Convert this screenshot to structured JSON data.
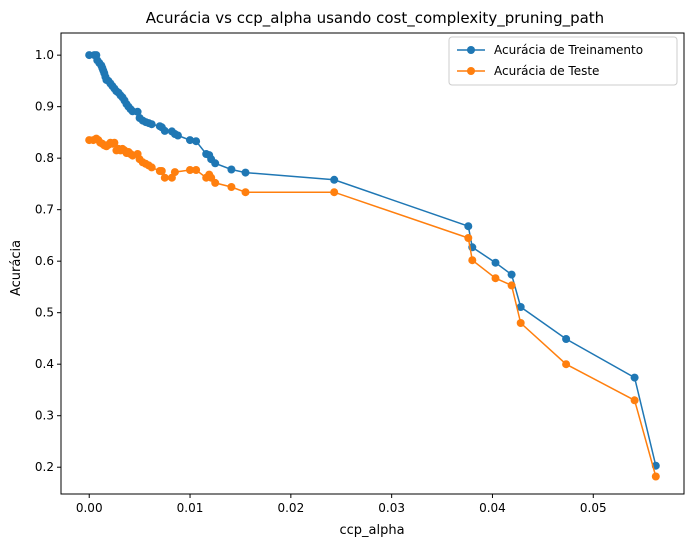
{
  "chart_data": {
    "type": "line",
    "title": "Acurácia vs ccp_alpha usando cost_complexity_pruning_path",
    "xlabel": "ccp_alpha",
    "ylabel": "Acurácia",
    "xlim": [
      -0.0028,
      0.059
    ],
    "ylim": [
      0.148,
      1.043
    ],
    "x_ticks": [
      "0.00",
      "0.01",
      "0.02",
      "0.03",
      "0.04",
      "0.05"
    ],
    "y_ticks": [
      "0.2",
      "0.3",
      "0.4",
      "0.5",
      "0.6",
      "0.7",
      "0.8",
      "0.9",
      "1.0"
    ],
    "grid": false,
    "legend_position": "top-right",
    "series": [
      {
        "name": "Acurácia de Treinamento",
        "color": "#1f77b4",
        "points": [
          [
            0.0,
            1.0
          ],
          [
            0.0005,
            1.0
          ],
          [
            0.0007,
            1.0
          ],
          [
            0.0008,
            0.99
          ],
          [
            0.001,
            0.985
          ],
          [
            0.0012,
            0.98
          ],
          [
            0.0013,
            0.975
          ],
          [
            0.0014,
            0.97
          ],
          [
            0.0015,
            0.965
          ],
          [
            0.0016,
            0.958
          ],
          [
            0.0017,
            0.952
          ],
          [
            0.0019,
            0.95
          ],
          [
            0.0021,
            0.945
          ],
          [
            0.0023,
            0.94
          ],
          [
            0.0025,
            0.935
          ],
          [
            0.0027,
            0.93
          ],
          [
            0.0029,
            0.927
          ],
          [
            0.0031,
            0.922
          ],
          [
            0.0033,
            0.918
          ],
          [
            0.0035,
            0.912
          ],
          [
            0.0037,
            0.905
          ],
          [
            0.0039,
            0.9
          ],
          [
            0.0041,
            0.895
          ],
          [
            0.0043,
            0.891
          ],
          [
            0.0048,
            0.89
          ],
          [
            0.005,
            0.878
          ],
          [
            0.0053,
            0.873
          ],
          [
            0.0056,
            0.87
          ],
          [
            0.0059,
            0.868
          ],
          [
            0.0062,
            0.866
          ],
          [
            0.007,
            0.862
          ],
          [
            0.0072,
            0.86
          ],
          [
            0.0075,
            0.853
          ],
          [
            0.0082,
            0.852
          ],
          [
            0.0085,
            0.847
          ],
          [
            0.0088,
            0.844
          ],
          [
            0.01,
            0.835
          ],
          [
            0.0106,
            0.833
          ],
          [
            0.0116,
            0.808
          ],
          [
            0.0119,
            0.806
          ],
          [
            0.0121,
            0.798
          ],
          [
            0.0125,
            0.79
          ],
          [
            0.0141,
            0.778
          ],
          [
            0.0155,
            0.772
          ],
          [
            0.0243,
            0.758
          ],
          [
            0.0376,
            0.668
          ],
          [
            0.038,
            0.627
          ],
          [
            0.0403,
            0.597
          ],
          [
            0.0419,
            0.574
          ],
          [
            0.0428,
            0.511
          ],
          [
            0.0473,
            0.449
          ],
          [
            0.0541,
            0.374
          ],
          [
            0.0562,
            0.203
          ]
        ]
      },
      {
        "name": "Acurácia de Teste",
        "color": "#ff7f0e",
        "points": [
          [
            0.0,
            0.835
          ],
          [
            0.0004,
            0.835
          ],
          [
            0.0007,
            0.838
          ],
          [
            0.0009,
            0.835
          ],
          [
            0.0011,
            0.83
          ],
          [
            0.0013,
            0.828
          ],
          [
            0.0015,
            0.825
          ],
          [
            0.0017,
            0.823
          ],
          [
            0.0019,
            0.826
          ],
          [
            0.0021,
            0.83
          ],
          [
            0.0023,
            0.828
          ],
          [
            0.0025,
            0.83
          ],
          [
            0.0027,
            0.815
          ],
          [
            0.0029,
            0.818
          ],
          [
            0.0031,
            0.815
          ],
          [
            0.0033,
            0.818
          ],
          [
            0.0035,
            0.815
          ],
          [
            0.0037,
            0.81
          ],
          [
            0.0039,
            0.812
          ],
          [
            0.0041,
            0.808
          ],
          [
            0.0043,
            0.805
          ],
          [
            0.0048,
            0.808
          ],
          [
            0.005,
            0.798
          ],
          [
            0.0053,
            0.792
          ],
          [
            0.0056,
            0.789
          ],
          [
            0.0059,
            0.786
          ],
          [
            0.0062,
            0.782
          ],
          [
            0.007,
            0.775
          ],
          [
            0.0072,
            0.775
          ],
          [
            0.0075,
            0.762
          ],
          [
            0.0082,
            0.762
          ],
          [
            0.0085,
            0.773
          ],
          [
            0.01,
            0.777
          ],
          [
            0.0106,
            0.777
          ],
          [
            0.0116,
            0.762
          ],
          [
            0.0119,
            0.768
          ],
          [
            0.0121,
            0.762
          ],
          [
            0.0125,
            0.752
          ],
          [
            0.0141,
            0.744
          ],
          [
            0.0155,
            0.734
          ],
          [
            0.0243,
            0.734
          ],
          [
            0.0376,
            0.645
          ],
          [
            0.038,
            0.602
          ],
          [
            0.0403,
            0.567
          ],
          [
            0.0419,
            0.553
          ],
          [
            0.0428,
            0.48
          ],
          [
            0.0473,
            0.4
          ],
          [
            0.0541,
            0.33
          ],
          [
            0.0562,
            0.182
          ]
        ]
      }
    ]
  }
}
